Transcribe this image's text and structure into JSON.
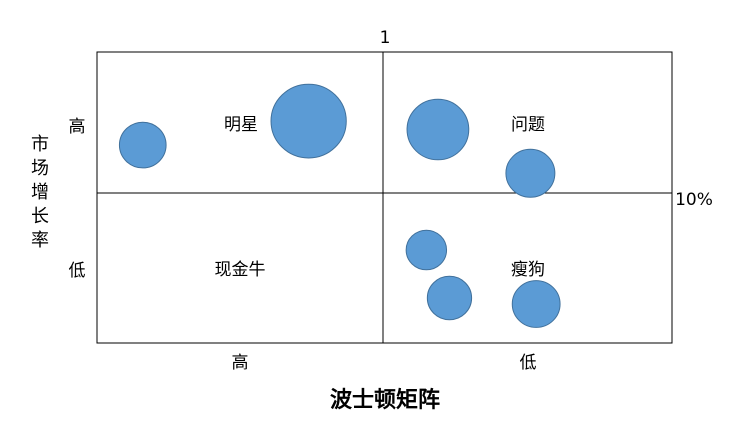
{
  "chart_data": {
    "type": "scatter",
    "title": "波士顿矩阵",
    "ylabel": "市场增长率",
    "x_divider_label": "1",
    "y_divider_label": "10%",
    "x_ticks": [
      "高",
      "低"
    ],
    "y_ticks": [
      "高",
      "低"
    ],
    "quadrants": {
      "top_left": "明星",
      "top_right": "问题",
      "bottom_left": "现金牛",
      "bottom_right": "瘦狗"
    },
    "bubbles": [
      {
        "quadrant": "top_left",
        "x": 0.16,
        "y": 0.66,
        "size": 0.2
      },
      {
        "quadrant": "top_left",
        "x": 0.74,
        "y": 0.49,
        "size": 0.52
      },
      {
        "quadrant": "top_right",
        "x": 0.19,
        "y": 0.55,
        "size": 0.35
      },
      {
        "quadrant": "top_right",
        "x": 0.51,
        "y": 0.86,
        "size": 0.22
      },
      {
        "quadrant": "bottom_right",
        "x": 0.15,
        "y": 0.38,
        "size": 0.15
      },
      {
        "quadrant": "bottom_right",
        "x": 0.23,
        "y": 0.7,
        "size": 0.18
      },
      {
        "quadrant": "bottom_right",
        "x": 0.53,
        "y": 0.74,
        "size": 0.21
      }
    ],
    "bubble_color": "#5b9bd5",
    "bubble_stroke": "#41719c",
    "grid_color": "#000000"
  }
}
